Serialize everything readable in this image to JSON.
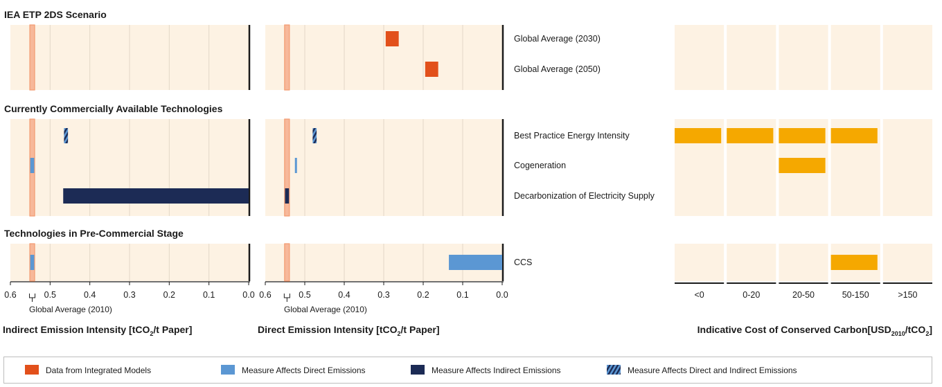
{
  "chart_data": {
    "type": "bar",
    "sections": [
      {
        "title": "IEA ETP 2DS Scenario",
        "rows": [
          "Global Average (2030)",
          "Global Average (2050)"
        ]
      },
      {
        "title": "Currently Commercially Available Technologies",
        "rows": [
          "Best Practice Energy Intensity",
          "Cogeneration",
          "Decarbonization of Electricity Supply"
        ]
      },
      {
        "title": "Technologies in Pre-Commercial Stage",
        "rows": [
          "CCS"
        ]
      }
    ],
    "indirect_panel": {
      "xlabel_main": "Indirect Emission Intensity [tCO",
      "xlabel_sub": "2",
      "xlabel_end": "/t Paper]",
      "xlim": [
        0.6,
        0.0
      ],
      "ticks": [
        "0.6",
        "0.5",
        "0.4",
        "0.3",
        "0.2",
        "0.1",
        "0.0"
      ],
      "tick_values": [
        0.6,
        0.5,
        0.4,
        0.3,
        0.2,
        0.1,
        0.0
      ],
      "baseline": 0.545,
      "baseline_label": "Global Average (2010)",
      "bars": [
        {
          "row": "Best Practice Energy Intensity",
          "start": 0.465,
          "end": 0.455,
          "category": "both"
        },
        {
          "row": "Cogeneration",
          "start": 0.55,
          "end": 0.54,
          "category": "direct"
        },
        {
          "row": "Decarbonization of Electricity Supply",
          "start": 0.467,
          "end": 0.0,
          "category": "indirect"
        },
        {
          "row": "CCS",
          "start": 0.55,
          "end": 0.54,
          "category": "direct"
        }
      ]
    },
    "direct_panel": {
      "xlabel_main": "Direct Emission Intensity [tCO",
      "xlabel_sub": "2",
      "xlabel_end": "/t Paper]",
      "xlim": [
        0.6,
        0.0
      ],
      "ticks": [
        "0.6",
        "0.5",
        "0.4",
        "0.3",
        "0.2",
        "0.1",
        "0.0"
      ],
      "tick_values": [
        0.6,
        0.5,
        0.4,
        0.3,
        0.2,
        0.1,
        0.0
      ],
      "baseline": 0.545,
      "baseline_label": "Global Average (2010)",
      "bars": [
        {
          "row": "Global Average (2030)",
          "start": 0.295,
          "end": 0.262,
          "category": "integrated"
        },
        {
          "row": "Global Average (2050)",
          "start": 0.195,
          "end": 0.162,
          "category": "integrated"
        },
        {
          "row": "Best Practice Energy Intensity",
          "start": 0.48,
          "end": 0.47,
          "category": "both"
        },
        {
          "row": "Cogeneration",
          "start": 0.525,
          "end": 0.52,
          "category": "direct"
        },
        {
          "row": "Decarbonization of Electricity Supply",
          "start": 0.55,
          "end": 0.54,
          "category": "indirect"
        },
        {
          "row": "CCS",
          "start": 0.135,
          "end": 0.0,
          "category": "direct"
        }
      ]
    },
    "cost_panel": {
      "xlabel_main": "Indicative Cost of Conserved Carbon[USD",
      "xlabel_sub": "2010",
      "xlabel_mid": "/tCO",
      "xlabel_sub2": "2",
      "xlabel_end": "]",
      "categories": [
        "<0",
        "0-20",
        "20-50",
        "50-150",
        ">150"
      ],
      "bars": [
        {
          "row": "Best Practice Energy Intensity",
          "from": 0,
          "to": 3
        },
        {
          "row": "Cogeneration",
          "from": 2,
          "to": 2
        },
        {
          "row": "CCS",
          "from": 3,
          "to": 3
        }
      ]
    },
    "legend": [
      {
        "label": "Data from Integrated Models",
        "category": "integrated"
      },
      {
        "label": "Measure Affects Direct Emissions",
        "category": "direct"
      },
      {
        "label": "Measure Affects Indirect Emissions",
        "category": "indirect"
      },
      {
        "label": "Measure Affects Direct and Indirect Emissions",
        "category": "both"
      }
    ],
    "colors": {
      "integrated": "#e2501b",
      "direct": "#5b97d3",
      "indirect": "#1c2b55",
      "cost": "#f5a800",
      "panel_bg": "#fdf2e3",
      "baseline": "#f29a70"
    }
  }
}
